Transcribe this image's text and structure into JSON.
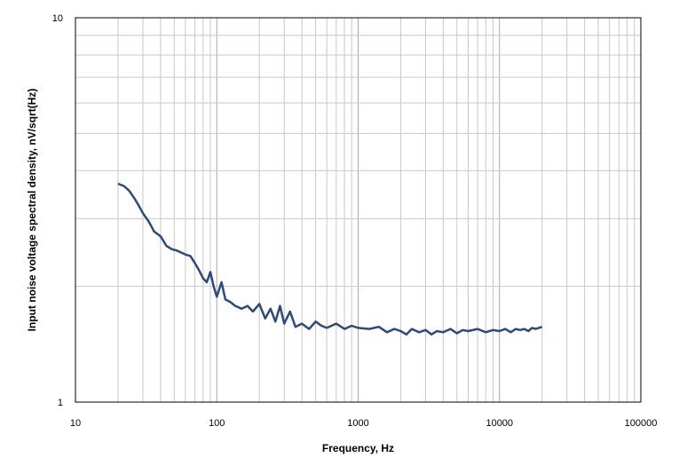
{
  "chart_data": {
    "type": "line",
    "title": "",
    "xlabel": "Frequency, Hz",
    "ylabel": "Input noise voltage spectral density, nV/sqrt(Hz)",
    "x_scale": "log",
    "y_scale": "log",
    "xlim": [
      10,
      100000
    ],
    "ylim": [
      1,
      10
    ],
    "x_ticks": [
      "10",
      "100",
      "1000",
      "10000",
      "100000"
    ],
    "y_ticks": [
      "1",
      "10"
    ],
    "grid": true,
    "legend": "none",
    "line_color": "#2e4a7d",
    "series": [
      {
        "x": [
          20,
          22,
          24,
          26,
          28,
          30,
          33,
          36,
          40,
          44,
          48,
          52,
          56,
          60,
          65,
          70,
          75,
          80,
          85,
          90,
          95,
          100,
          108,
          115,
          125,
          135,
          150,
          165,
          180,
          200,
          220,
          240,
          260,
          280,
          300,
          330,
          360,
          400,
          450,
          500,
          550,
          600,
          700,
          800,
          900,
          1000,
          1200,
          1400,
          1600,
          1800,
          2000,
          2200,
          2400,
          2700,
          3000,
          3300,
          3600,
          4000,
          4500,
          5000,
          5500,
          6000,
          7000,
          8000,
          9000,
          10000,
          11000,
          12000,
          13000,
          14000,
          15000,
          16000,
          17000,
          18000,
          19000,
          20000
        ],
        "y": [
          3.7,
          3.65,
          3.55,
          3.4,
          3.25,
          3.1,
          2.95,
          2.78,
          2.7,
          2.55,
          2.5,
          2.48,
          2.45,
          2.42,
          2.4,
          2.3,
          2.2,
          2.1,
          2.05,
          2.18,
          2.0,
          1.88,
          2.05,
          1.85,
          1.82,
          1.78,
          1.75,
          1.78,
          1.72,
          1.8,
          1.65,
          1.75,
          1.62,
          1.78,
          1.6,
          1.72,
          1.57,
          1.6,
          1.55,
          1.62,
          1.58,
          1.56,
          1.6,
          1.55,
          1.58,
          1.56,
          1.55,
          1.57,
          1.52,
          1.55,
          1.53,
          1.5,
          1.55,
          1.52,
          1.54,
          1.5,
          1.53,
          1.52,
          1.55,
          1.51,
          1.54,
          1.53,
          1.55,
          1.52,
          1.54,
          1.53,
          1.55,
          1.52,
          1.55,
          1.54,
          1.55,
          1.53,
          1.56,
          1.55,
          1.56,
          1.57
        ]
      }
    ]
  }
}
